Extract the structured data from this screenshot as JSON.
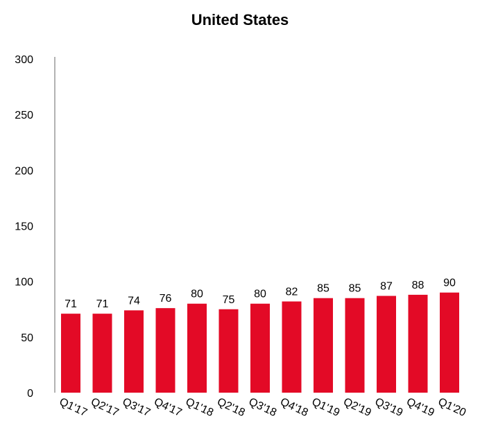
{
  "chart_data": {
    "type": "bar",
    "title": "United States",
    "xlabel": "",
    "ylabel": "",
    "categories": [
      "Q1'17",
      "Q2'17",
      "Q3'17",
      "Q4'17",
      "Q1'18",
      "Q2'18",
      "Q3'18",
      "Q4'18",
      "Q1'19",
      "Q2'19",
      "Q3'19",
      "Q4'19",
      "Q1'20"
    ],
    "values": [
      71,
      71,
      74,
      76,
      80,
      75,
      80,
      82,
      85,
      85,
      87,
      88,
      90
    ],
    "ylim": [
      0,
      300
    ],
    "yticks": [
      0,
      50,
      100,
      150,
      200,
      250,
      300
    ],
    "grid": false,
    "bar_color": "#e30a26",
    "data_labels": true
  }
}
